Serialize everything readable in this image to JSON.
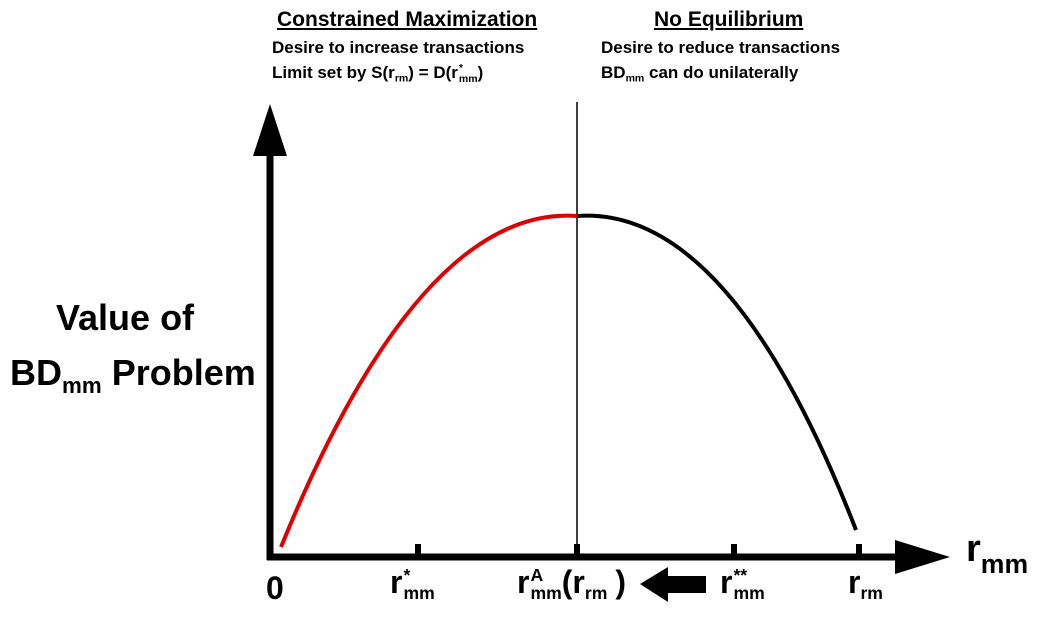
{
  "left_panel": {
    "heading": "Constrained Maximization",
    "line1": "Desire to increase transactions",
    "line2_pre": "Limit set by S(r",
    "line2_sub": "rm",
    "line2_mid": ") = D(r",
    "line2_sup": "*",
    "line2_sub2": "mm",
    "line2_post": ")"
  },
  "right_panel": {
    "heading": "No Equilibrium",
    "line1": "Desire to reduce transactions",
    "line2_pre": "BD",
    "line2_sub": "mm",
    "line2_post": " can do unilaterally"
  },
  "y_axis_label": {
    "line1": "Value of",
    "line2_pre": "BD",
    "line2_sub": "mm",
    "line2_post": " Problem"
  },
  "x_axis_label": {
    "main": "r",
    "sub": "mm"
  },
  "ticks": {
    "zero": "0",
    "t1_main": "r",
    "t1_sup": "*",
    "t1_sub": "mm",
    "t2_main": "r",
    "t2_sup": "A",
    "t2_sub": "mm",
    "t2_paren_open": "(",
    "t2_inner": "r",
    "t2_inner_sub": "rm",
    "t2_paren_close": ")",
    "t3_main": "r",
    "t3_sup": "**",
    "t3_sub": "mm",
    "t4_main": "r",
    "t4_sub": "rm"
  },
  "colors": {
    "rising_branch": "#e00000",
    "falling_branch": "#000000",
    "axis": "#000000"
  }
}
